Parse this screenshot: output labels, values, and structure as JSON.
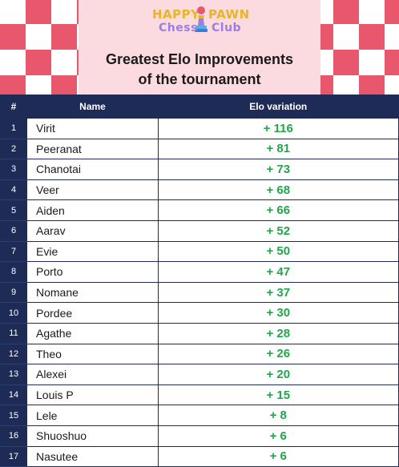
{
  "header": {
    "logo": {
      "word1": "HAPPY",
      "word2": "PAWN",
      "word3": "Chess",
      "word4": "Club"
    },
    "title_line1": "Greatest Elo Improvements",
    "title_line2": "of the tournament"
  },
  "colors": {
    "banner_red": "#e8576b",
    "panel_pink": "#fbdbe0",
    "navy": "#1e2b57",
    "green": "#22a64a"
  },
  "table": {
    "headers": {
      "num": "#",
      "name": "Name",
      "variation": "Elo variation"
    },
    "rows": [
      {
        "num": "1",
        "name": "Virit",
        "variation": "+ 116"
      },
      {
        "num": "2",
        "name": "Peeranat",
        "variation": "+ 81"
      },
      {
        "num": "3",
        "name": "Chanotai",
        "variation": "+ 73"
      },
      {
        "num": "4",
        "name": "Veer",
        "variation": "+ 68"
      },
      {
        "num": "5",
        "name": "Aiden",
        "variation": "+ 66"
      },
      {
        "num": "6",
        "name": "Aarav",
        "variation": "+ 52"
      },
      {
        "num": "7",
        "name": "Evie",
        "variation": "+ 50"
      },
      {
        "num": "8",
        "name": "Porto",
        "variation": "+ 47"
      },
      {
        "num": "9",
        "name": "Nomane",
        "variation": "+ 37"
      },
      {
        "num": "10",
        "name": "Pordee",
        "variation": "+ 30"
      },
      {
        "num": "11",
        "name": "Agathe",
        "variation": "+ 28"
      },
      {
        "num": "12",
        "name": "Theo",
        "variation": "+ 26"
      },
      {
        "num": "13",
        "name": "Alexei",
        "variation": "+ 20"
      },
      {
        "num": "14",
        "name": "Louis P",
        "variation": "+ 15"
      },
      {
        "num": "15",
        "name": "Lele",
        "variation": "+ 8"
      },
      {
        "num": "16",
        "name": "Shuoshuo",
        "variation": "+ 6"
      },
      {
        "num": "17",
        "name": "Nasutee",
        "variation": "+ 6"
      }
    ]
  }
}
